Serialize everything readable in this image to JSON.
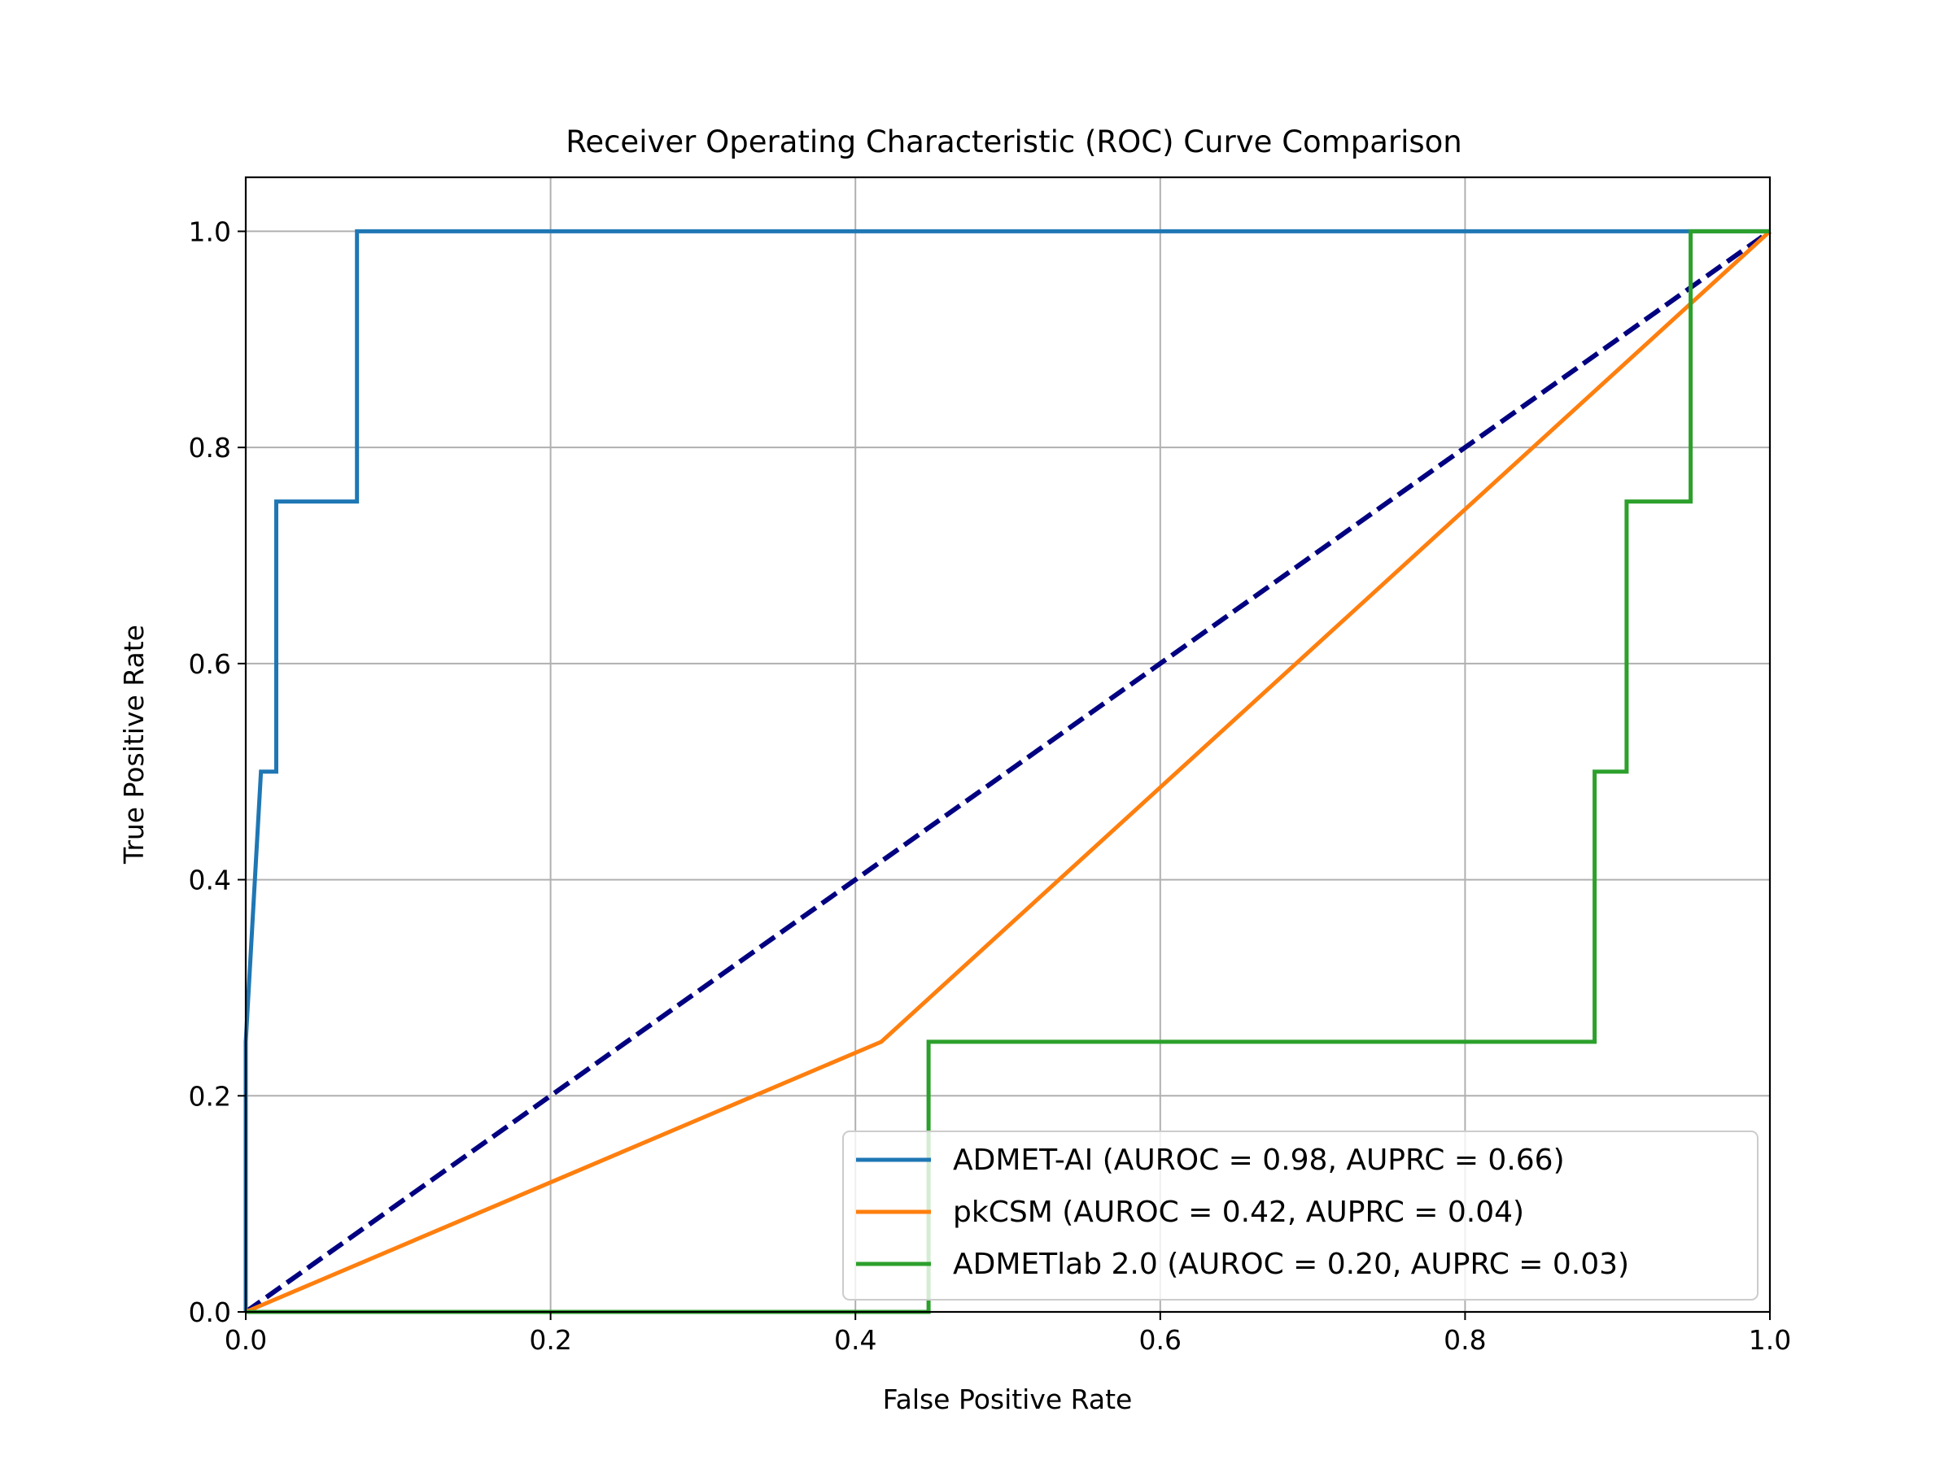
{
  "chart_data": {
    "type": "line",
    "title": "Receiver Operating Characteristic (ROC) Curve Comparison",
    "xlabel": "False Positive Rate",
    "ylabel": "True Positive Rate",
    "xlim": [
      0.0,
      1.0
    ],
    "ylim": [
      0.0,
      1.05
    ],
    "xticks": [
      "0.0",
      "0.2",
      "0.4",
      "0.6",
      "0.8",
      "1.0"
    ],
    "yticks": [
      "0.0",
      "0.2",
      "0.4",
      "0.6",
      "0.8",
      "1.0"
    ],
    "grid": true,
    "legend_position": "lower-right",
    "series": [
      {
        "name": "ADMET-AI (AUROC = 0.98, AUPRC = 0.66)",
        "color": "#1f77b4",
        "style": "solid",
        "x": [
          0.0,
          0.0,
          0.01,
          0.01,
          0.02,
          0.02,
          0.073,
          0.073,
          1.0
        ],
        "y": [
          0.0,
          0.25,
          0.5,
          0.5,
          0.5,
          0.75,
          0.75,
          1.0,
          1.0
        ]
      },
      {
        "name": "pkCSM (AUROC = 0.42, AUPRC = 0.04)",
        "color": "#ff7f0e",
        "style": "solid",
        "x": [
          0.0,
          0.417,
          1.0
        ],
        "y": [
          0.0,
          0.25,
          1.0
        ]
      },
      {
        "name": "ADMETlab 2.0 (AUROC = 0.20, AUPRC = 0.03)",
        "color": "#2ca02c",
        "style": "solid",
        "x": [
          0.0,
          0.448,
          0.448,
          0.885,
          0.885,
          0.906,
          0.906,
          0.948,
          0.948,
          1.0
        ],
        "y": [
          0.0,
          0.0,
          0.25,
          0.25,
          0.5,
          0.5,
          0.75,
          0.75,
          1.0,
          1.0
        ]
      },
      {
        "name": "",
        "color": "#000080",
        "style": "dashed",
        "x": [
          0.0,
          1.0
        ],
        "y": [
          0.0,
          1.0
        ]
      }
    ]
  }
}
